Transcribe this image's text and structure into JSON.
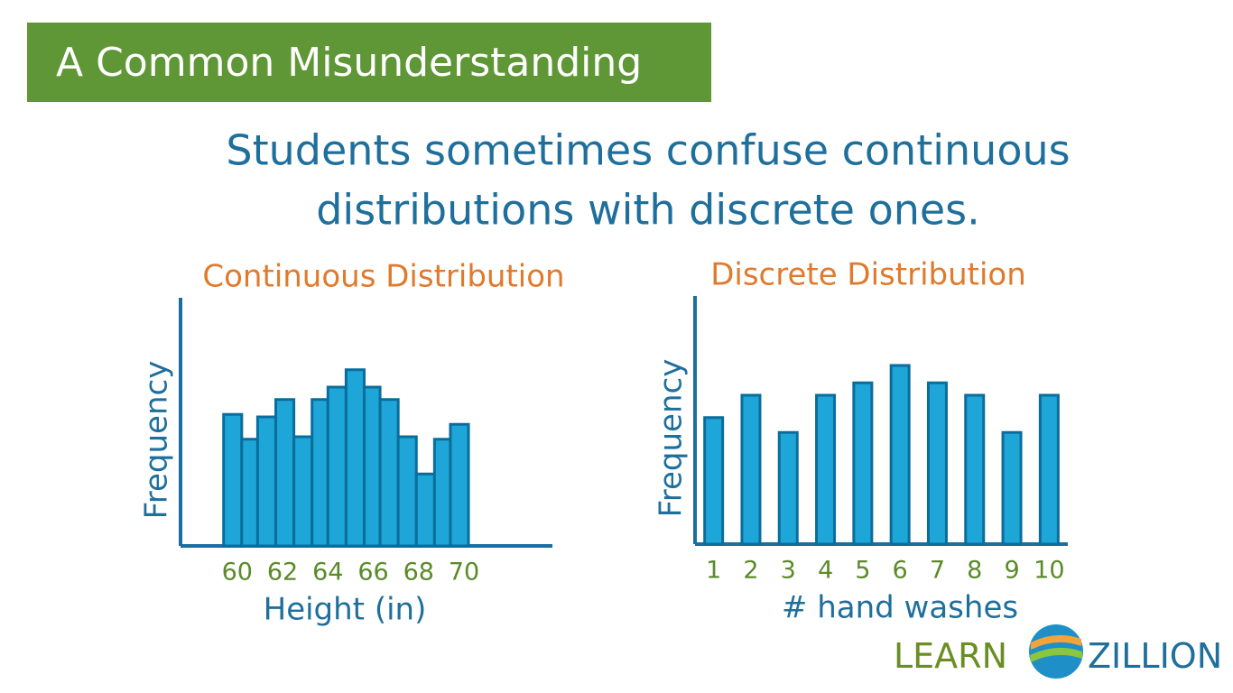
{
  "header": {
    "title": "A Common Misunderstanding"
  },
  "subtitle": [
    "Students sometimes confuse continuous",
    "distributions with discrete ones."
  ],
  "logo": {
    "left": "LEARN",
    "right": "ZILLION"
  },
  "chart_data": [
    {
      "type": "histogram",
      "title": "Continuous Distribution",
      "x_label": "Height (in)",
      "y_label": "Frequency",
      "bins": [
        59.4,
        60.2,
        60.9,
        61.7,
        62.5,
        63.3,
        64.0,
        64.8,
        65.6,
        66.3,
        67.1,
        67.9,
        68.7,
        69.4,
        70.2
      ],
      "values": [
        5.3,
        4.3,
        5.2,
        5.9,
        4.4,
        5.9,
        6.4,
        7.1,
        6.4,
        5.9,
        4.4,
        2.9,
        4.3,
        4.9
      ],
      "xlim": [
        57.5,
        73.9
      ],
      "xticks": [
        60,
        62,
        64,
        66,
        68,
        70
      ],
      "ylim": [
        0,
        10
      ],
      "color": "#1ea6d8",
      "edge_color": "#0b6d9c"
    },
    {
      "type": "bar",
      "title": "Discrete Distribution",
      "x_label": "# hand washes",
      "y_label": "Frequency",
      "categories": [
        "1",
        "2",
        "3",
        "4",
        "5",
        "6",
        "7",
        "8",
        "9",
        "10"
      ],
      "values": [
        5.1,
        6.0,
        4.5,
        6.0,
        6.5,
        7.2,
        6.5,
        6.0,
        4.5,
        6.0
      ],
      "ylim": [
        0,
        10
      ],
      "color": "#1ea6d8",
      "edge_color": "#0b6d9c"
    }
  ]
}
